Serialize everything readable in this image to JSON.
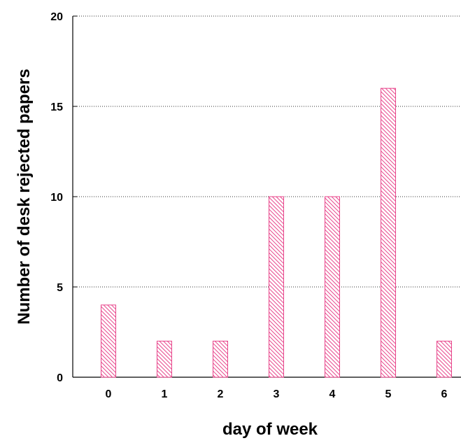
{
  "chart_data": {
    "type": "bar",
    "categories": [
      "0",
      "1",
      "2",
      "3",
      "4",
      "5",
      "6"
    ],
    "values": [
      4,
      2,
      2,
      10,
      10,
      16,
      2
    ],
    "xlabel": "day of week",
    "ylabel": "Number of desk rejected papers",
    "ylim": [
      0,
      20
    ],
    "yticks": [
      "0",
      "5",
      "10",
      "15",
      "20"
    ],
    "grid": "horizontal dotted",
    "bar_color": "#e8458b",
    "bar_fill": "diagonal hatch"
  }
}
